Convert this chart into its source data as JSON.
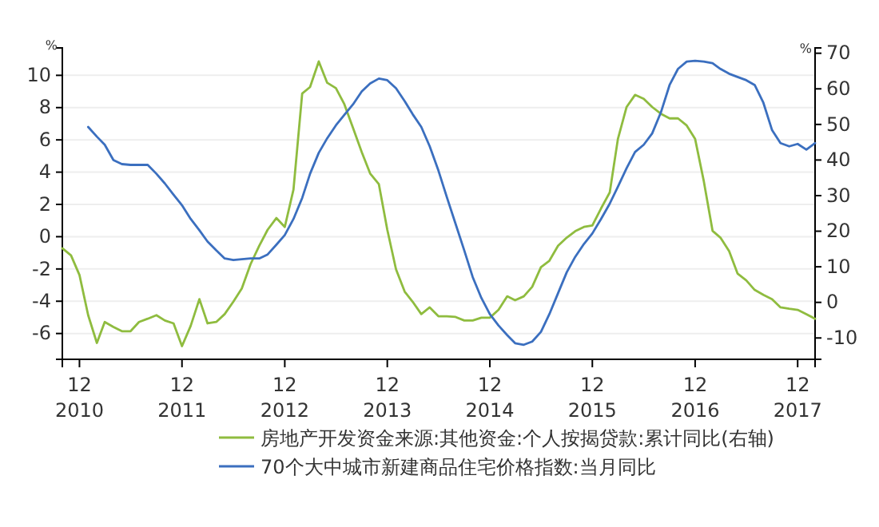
{
  "chart_data": {
    "type": "line",
    "ylabel": "%",
    "y2label": "%",
    "xlim": [
      "2010-10",
      "2018-02"
    ],
    "xticks": [
      {
        "value": "2010-12",
        "label": "12\n2010"
      },
      {
        "value": "2011-12",
        "label": "12\n2011"
      },
      {
        "value": "2012-12",
        "label": "12\n2012"
      },
      {
        "value": "2013-12",
        "label": "12\n2013"
      },
      {
        "value": "2014-12",
        "label": "12\n2014"
      },
      {
        "value": "2015-12",
        "label": "12\n2015"
      },
      {
        "value": "2016-12",
        "label": "12\n2016"
      },
      {
        "value": "2017-12",
        "label": "12\n2017"
      }
    ],
    "ylim": [
      -7.6,
      11.7
    ],
    "yticks": [
      -6,
      -4,
      -2,
      0,
      2,
      4,
      6,
      8,
      10
    ],
    "y2lim": [
      -16,
      71.5
    ],
    "y2ticks": [
      -10,
      0,
      10,
      20,
      30,
      40,
      50,
      60,
      70
    ],
    "grid": "y",
    "legend": "bottom",
    "series": [
      {
        "name": "房地产开发资金来源:其他资金:个人按揭贷款:累计同比(右轴)",
        "color": "#8fbc3f",
        "axis": "y2",
        "x": [
          "2010-10",
          "2010-11",
          "2010-12",
          "2011-01",
          "2011-02",
          "2011-03",
          "2011-04",
          "2011-05",
          "2011-06",
          "2011-07",
          "2011-08",
          "2011-09",
          "2011-10",
          "2011-11",
          "2011-12",
          "2012-01",
          "2012-02",
          "2012-03",
          "2012-04",
          "2012-05",
          "2012-06",
          "2012-07",
          "2012-08",
          "2012-09",
          "2012-10",
          "2012-11",
          "2012-12",
          "2013-01",
          "2013-02",
          "2013-03",
          "2013-04",
          "2013-05",
          "2013-06",
          "2013-07",
          "2013-08",
          "2013-09",
          "2013-10",
          "2013-11",
          "2013-12",
          "2014-01",
          "2014-02",
          "2014-03",
          "2014-04",
          "2014-05",
          "2014-06",
          "2014-07",
          "2014-08",
          "2014-09",
          "2014-10",
          "2014-11",
          "2014-12",
          "2015-01",
          "2015-02",
          "2015-03",
          "2015-04",
          "2015-05",
          "2015-06",
          "2015-07",
          "2015-08",
          "2015-09",
          "2015-10",
          "2015-11",
          "2015-12",
          "2016-01",
          "2016-02",
          "2016-03",
          "2016-04",
          "2016-05",
          "2016-06",
          "2016-07",
          "2016-08",
          "2016-09",
          "2016-10",
          "2016-11",
          "2016-12",
          "2017-01",
          "2017-02",
          "2017-03",
          "2017-04",
          "2017-05",
          "2017-06",
          "2017-07",
          "2017-08",
          "2017-09",
          "2017-10",
          "2017-11",
          "2017-12",
          "2018-01",
          "2018-02"
        ],
        "values": [
          15.2,
          13.2,
          7.7,
          -3.6,
          -11.4,
          -5.5,
          -6.9,
          -8.1,
          -8.1,
          -5.5,
          -4.6,
          -3.6,
          -5.1,
          -5.9,
          -12.3,
          -6.6,
          0.9,
          -5.9,
          -5.5,
          -3.3,
          0.2,
          3.9,
          10.7,
          15.9,
          20.4,
          23.7,
          21.2,
          31.7,
          58.7,
          60.5,
          67.7,
          61.7,
          60.2,
          55.7,
          49,
          42.2,
          36.2,
          33.2,
          20.4,
          9.3,
          3,
          0.2,
          -3.3,
          -1.4,
          -3.9,
          -3.9,
          -4.1,
          -5.1,
          -5.1,
          -4.3,
          -4.3,
          -2.1,
          1.7,
          0.6,
          1.7,
          4.4,
          9.9,
          11.7,
          15.9,
          18.2,
          20,
          21.2,
          21.6,
          26.4,
          30.9,
          45.9,
          54.9,
          58.3,
          57.2,
          54.9,
          53,
          51.7,
          51.7,
          49.7,
          45.9,
          34,
          20.1,
          18.2,
          14.4,
          8.1,
          6.2,
          3.5,
          2.1,
          0.9,
          -1.4,
          -1.8,
          -2.1,
          -3.3,
          -4.6
        ]
      },
      {
        "name": "70个大中城市新建商品住宅价格指数:当月同比",
        "color": "#3b6fbf",
        "x": [
          "2011-01",
          "2011-02",
          "2011-03",
          "2011-04",
          "2011-05",
          "2011-06",
          "2011-07",
          "2011-08",
          "2011-09",
          "2011-10",
          "2011-11",
          "2011-12",
          "2012-01",
          "2012-02",
          "2012-03",
          "2012-04",
          "2012-05",
          "2012-06",
          "2012-07",
          "2012-08",
          "2012-09",
          "2012-10",
          "2012-11",
          "2012-12",
          "2013-01",
          "2013-02",
          "2013-03",
          "2013-04",
          "2013-05",
          "2013-06",
          "2013-07",
          "2013-08",
          "2013-09",
          "2013-10",
          "2013-11",
          "2013-12",
          "2014-01",
          "2014-02",
          "2014-03",
          "2014-04",
          "2014-05",
          "2014-06",
          "2014-07",
          "2014-08",
          "2014-09",
          "2014-10",
          "2014-11",
          "2014-12",
          "2015-01",
          "2015-02",
          "2015-03",
          "2015-04",
          "2015-05",
          "2015-06",
          "2015-07",
          "2015-08",
          "2015-09",
          "2015-10",
          "2015-11",
          "2015-12",
          "2016-01",
          "2016-02",
          "2016-03",
          "2016-04",
          "2016-05",
          "2016-06",
          "2016-07",
          "2016-08",
          "2016-09",
          "2016-10",
          "2016-11",
          "2016-12",
          "2017-01",
          "2017-02",
          "2017-03",
          "2017-04",
          "2017-05",
          "2017-06",
          "2017-07",
          "2017-08",
          "2017-09",
          "2017-10",
          "2017-11",
          "2017-12",
          "2018-01",
          "2018-02"
        ],
        "values": [
          6.8,
          6.2,
          5.7,
          4.75,
          4.5,
          4.45,
          4.45,
          4.45,
          3.9,
          3.3,
          2.6,
          1.95,
          1.1,
          0.4,
          -0.3,
          -0.85,
          -1.35,
          -1.45,
          -1.4,
          -1.35,
          -1.35,
          -1.1,
          -0.5,
          0.1,
          1.1,
          2.4,
          3.9,
          5.2,
          6.1,
          6.9,
          7.55,
          8.2,
          9,
          9.5,
          9.8,
          9.7,
          9.2,
          8.4,
          7.6,
          6.8,
          5.6,
          4.1,
          2.45,
          0.8,
          -0.85,
          -2.5,
          -3.8,
          -4.8,
          -5.5,
          -6.1,
          -6.6,
          -6.7,
          -6.5,
          -5.9,
          -4.8,
          -3.5,
          -2.2,
          -1.25,
          -0.45,
          0.2,
          1.1,
          2.05,
          3.1,
          4.25,
          5.25,
          5.7,
          6.4,
          7.7,
          9.4,
          10.4,
          10.85,
          10.9,
          10.85,
          10.75,
          10.4,
          10.1,
          9.9,
          9.7,
          9.4,
          8.3,
          6.6,
          5.8,
          5.6,
          5.75,
          5.4,
          5.8
        ]
      }
    ]
  }
}
